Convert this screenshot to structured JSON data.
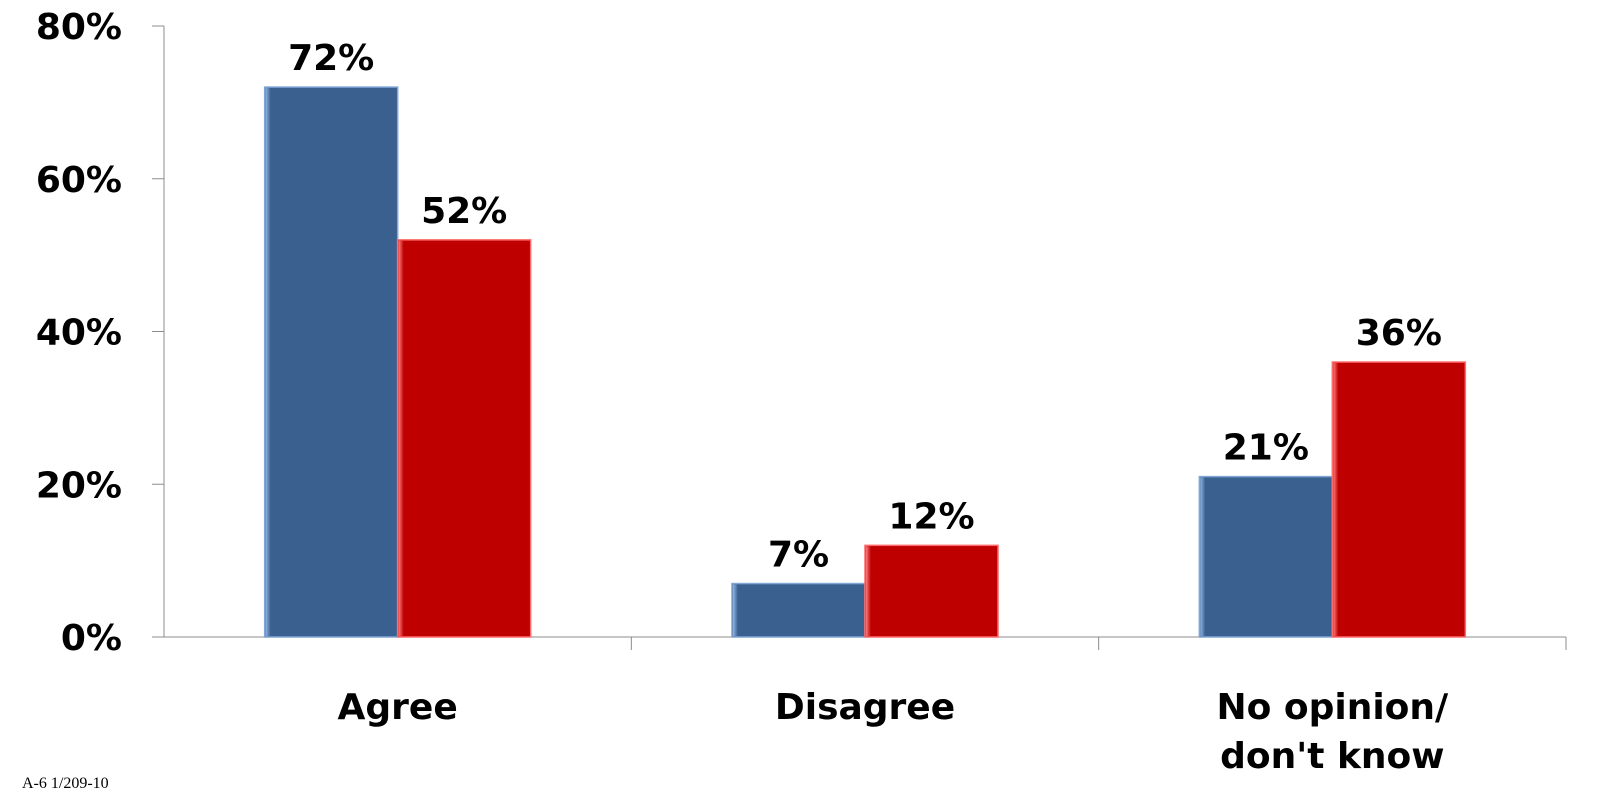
{
  "chart_data": {
    "type": "bar",
    "categories": [
      [
        "Agree"
      ],
      [
        "Disagree"
      ],
      [
        "No opinion/",
        "don't know"
      ]
    ],
    "series": [
      {
        "values": [
          72,
          7,
          21
        ],
        "color": "#3A6090",
        "highlight": "#7FA5D6"
      },
      {
        "values": [
          52,
          12,
          36
        ],
        "color": "#BF0000",
        "highlight": "#FF6A6A"
      }
    ],
    "value_labels": [
      [
        "72%",
        "7%",
        "21%"
      ],
      [
        "52%",
        "12%",
        "36%"
      ]
    ],
    "y_ticks": [
      {
        "value": 0,
        "label": "0%"
      },
      {
        "value": 20,
        "label": "20%"
      },
      {
        "value": 40,
        "label": "40%"
      },
      {
        "value": 60,
        "label": "60%"
      },
      {
        "value": 80,
        "label": "80%"
      }
    ],
    "ylim": [
      0,
      80
    ],
    "title": "",
    "xlabel": "",
    "ylabel": "",
    "legend": "none",
    "grid": false
  },
  "footnote": "A-6 1/209-10"
}
